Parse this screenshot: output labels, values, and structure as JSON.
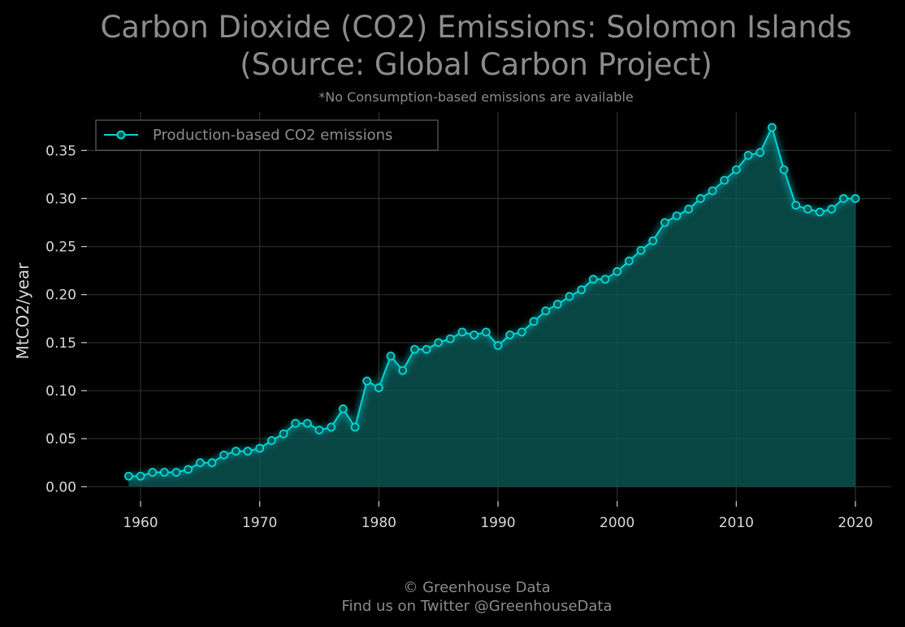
{
  "chart_data": {
    "type": "area",
    "title": "Carbon Dioxide (CO2) Emissions: Solomon Islands",
    "title_line2": "(Source: Global Carbon Project)",
    "subtitle": "*No Consumption-based emissions are available",
    "ylabel": "MtCO2/year",
    "xlabel": "",
    "xlim": [
      1955.5,
      2023
    ],
    "ylim": [
      -0.015,
      0.39
    ],
    "xticks": [
      "1960",
      "1970",
      "1980",
      "1990",
      "2000",
      "2010",
      "2020"
    ],
    "yticks": [
      "0.00",
      "0.05",
      "0.10",
      "0.15",
      "0.20",
      "0.25",
      "0.30",
      "0.35"
    ],
    "grid": true,
    "legend_position": "top-left",
    "series": [
      {
        "name": "Production-based CO2 emissions",
        "color": "#00d5d5",
        "fill_color": "#0a5a57",
        "x": [
          1959,
          1960,
          1961,
          1962,
          1963,
          1964,
          1965,
          1966,
          1967,
          1968,
          1969,
          1970,
          1971,
          1972,
          1973,
          1974,
          1975,
          1976,
          1977,
          1978,
          1979,
          1980,
          1981,
          1982,
          1983,
          1984,
          1985,
          1986,
          1987,
          1988,
          1989,
          1990,
          1991,
          1992,
          1993,
          1994,
          1995,
          1996,
          1997,
          1998,
          1999,
          2000,
          2001,
          2002,
          2003,
          2004,
          2005,
          2006,
          2007,
          2008,
          2009,
          2010,
          2011,
          2012,
          2013,
          2014,
          2015,
          2016,
          2017,
          2018,
          2019,
          2020
        ],
        "values": [
          0.011,
          0.011,
          0.015,
          0.015,
          0.015,
          0.018,
          0.025,
          0.025,
          0.033,
          0.037,
          0.037,
          0.04,
          0.048,
          0.055,
          0.066,
          0.066,
          0.059,
          0.062,
          0.081,
          0.062,
          0.11,
          0.103,
          0.136,
          0.121,
          0.143,
          0.143,
          0.15,
          0.154,
          0.161,
          0.158,
          0.161,
          0.147,
          0.158,
          0.161,
          0.172,
          0.183,
          0.19,
          0.198,
          0.205,
          0.216,
          0.216,
          0.224,
          0.235,
          0.246,
          0.256,
          0.275,
          0.282,
          0.289,
          0.3,
          0.308,
          0.319,
          0.33,
          0.345,
          0.348,
          0.374,
          0.33,
          0.293,
          0.289,
          0.286,
          0.289,
          0.3,
          0.3
        ]
      }
    ]
  },
  "footer": {
    "line1": "© Greenhouse Data",
    "line2": "Find us on Twitter @GreenhouseData"
  }
}
